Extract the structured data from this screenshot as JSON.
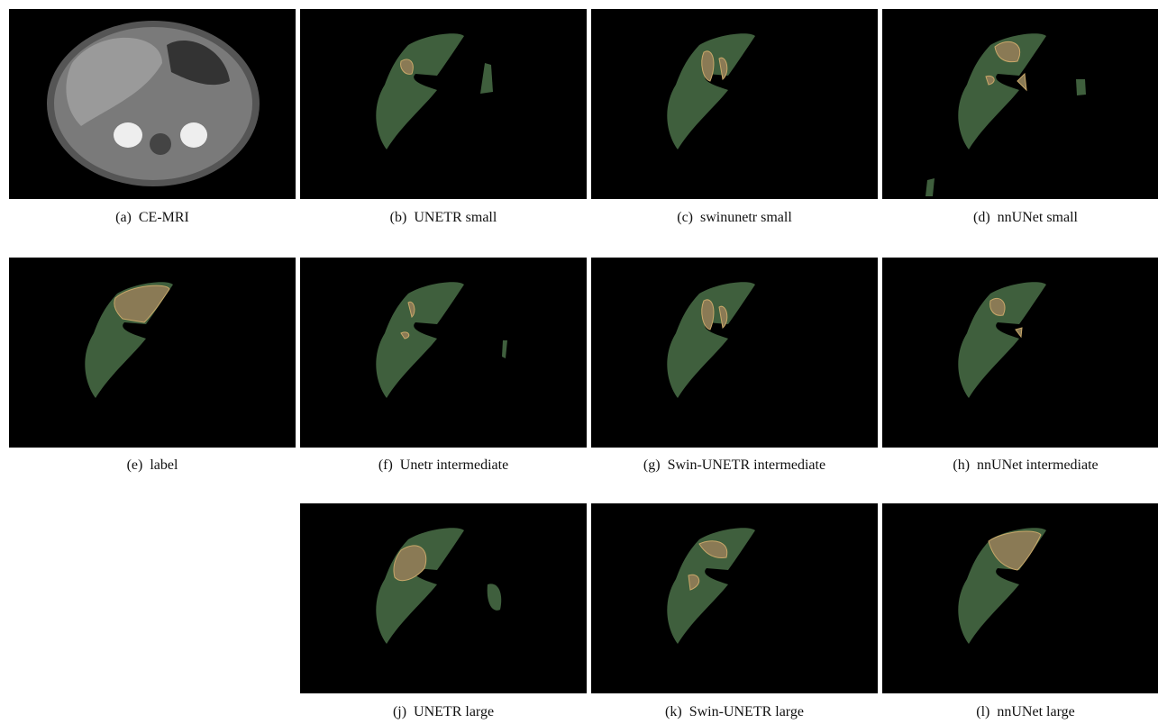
{
  "panels": [
    {
      "caption": "(a)  CE-MRI"
    },
    {
      "caption": "(b)  UNETR small"
    },
    {
      "caption": "(c)  swinunetr small"
    },
    {
      "caption": "(d)  nnUNet small"
    },
    {
      "caption": "(e)  label"
    },
    {
      "caption": "(f)  Unetr intermediate"
    },
    {
      "caption": "(g)  Swin-UNETR intermediate"
    },
    {
      "caption": "(h)  nnUNet intermediate"
    },
    {
      "caption": "(j)  UNETR large"
    },
    {
      "caption": "(k)  Swin-UNETR large"
    },
    {
      "caption": "(l)  nnUNet large"
    }
  ]
}
